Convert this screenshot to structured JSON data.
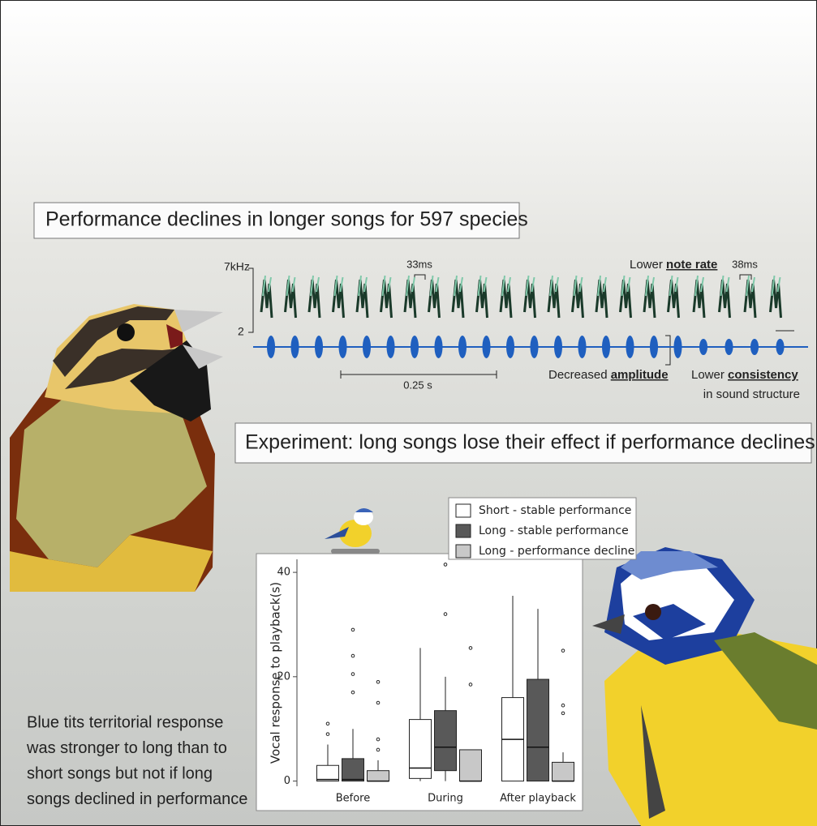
{
  "headline": "Performance declines in longer songs for 597 species",
  "spectrogram": {
    "freq_top": "7kHz",
    "freq_bottom": "2",
    "gap_1": "33ms",
    "gap_2": "38ms",
    "note_rate": {
      "prefix": "Lower",
      "emphasis": "note rate"
    },
    "time_scale": "0.25 s",
    "amplitude": {
      "prefix": "Decreased",
      "emphasis": "amplitude"
    },
    "consistency": {
      "prefix": "Lower",
      "emphasis": "consistency",
      "suffix": "in sound structure"
    }
  },
  "experiment": "Experiment: long songs lose their effect if performance declines",
  "summary": [
    "Blue tits territorial response",
    "was stronger to long than to",
    "short songs but not if long",
    "songs declined in performance"
  ],
  "chart_data": {
    "type": "box",
    "y_label": "Vocal response to playback(s)",
    "categories": [
      "Before",
      "During",
      "After playback"
    ],
    "ylim": [
      -1,
      42.5
    ],
    "yticks": [
      0,
      20,
      40
    ],
    "series": [
      {
        "name": "Short - stable performance",
        "color": "#ffffff",
        "min": [
          0,
          0,
          0
        ],
        "q1": [
          0,
          0.5,
          0
        ],
        "median": [
          0.3,
          2.5,
          8
        ],
        "q3": [
          3,
          11.8,
          16
        ],
        "max": [
          7,
          25.5,
          35.5
        ],
        "outliers": [
          [
            9,
            11
          ],
          [],
          []
        ]
      },
      {
        "name": "Long - stable performance",
        "color": "#595959",
        "min": [
          0,
          0,
          0
        ],
        "q1": [
          0,
          2,
          0
        ],
        "median": [
          0.3,
          6.5,
          6.5
        ],
        "q3": [
          4.3,
          13.5,
          19.5
        ],
        "max": [
          10,
          20,
          33
        ],
        "outliers": [
          [
            17,
            20.5,
            24,
            29
          ],
          [
            32,
            41.5
          ],
          []
        ]
      },
      {
        "name": "Long - performance decline",
        "color": "#c8c8c8",
        "min": [
          0,
          0,
          0
        ],
        "q1": [
          0,
          0,
          0
        ],
        "median": [
          0,
          0,
          0
        ],
        "q3": [
          2,
          6,
          3.6
        ],
        "max": [
          4,
          6,
          5.5
        ],
        "outliers": [
          [
            6,
            8,
            15,
            19
          ],
          [
            18.5,
            25.5
          ],
          [
            13,
            14.5,
            25
          ]
        ]
      }
    ]
  }
}
